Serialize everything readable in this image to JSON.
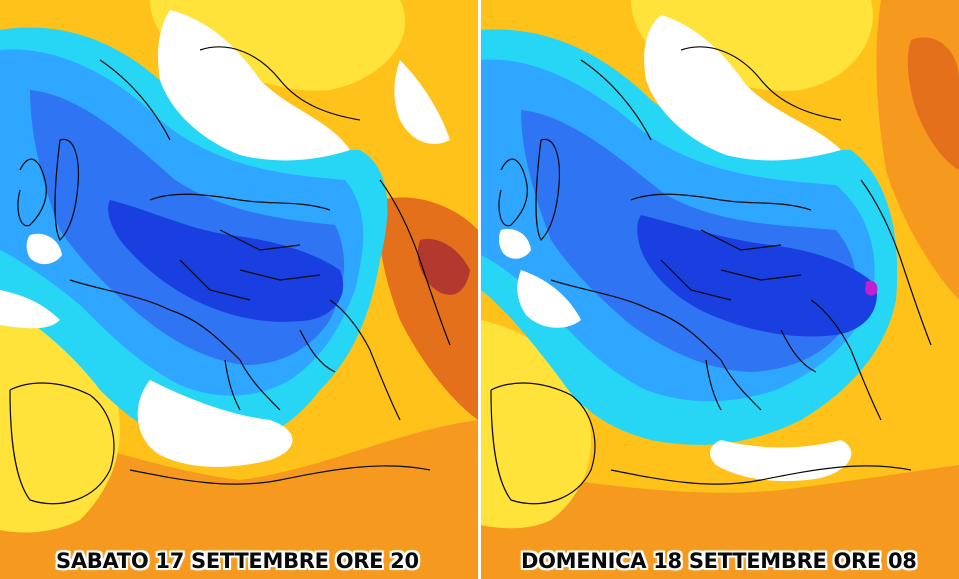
{
  "panels": [
    {
      "caption": "SABATO 17 SETTEMBRE ORE 20"
    },
    {
      "caption": "DOMENICA 18 SETTEMBRE ORE 08"
    }
  ],
  "colors": {
    "very_cold": "#1a3fe0",
    "cold": "#2f74f2",
    "cool": "#2fa6ff",
    "chilly": "#27d6f5",
    "neutral": "#ffffff",
    "mild": "#ffe23a",
    "warm": "#ffc21a",
    "hot": "#f59a1e",
    "very_hot": "#e5701c",
    "extreme": "#b3392f",
    "peak_cold": "#c020d0",
    "borders": "#0a0a0a"
  }
}
